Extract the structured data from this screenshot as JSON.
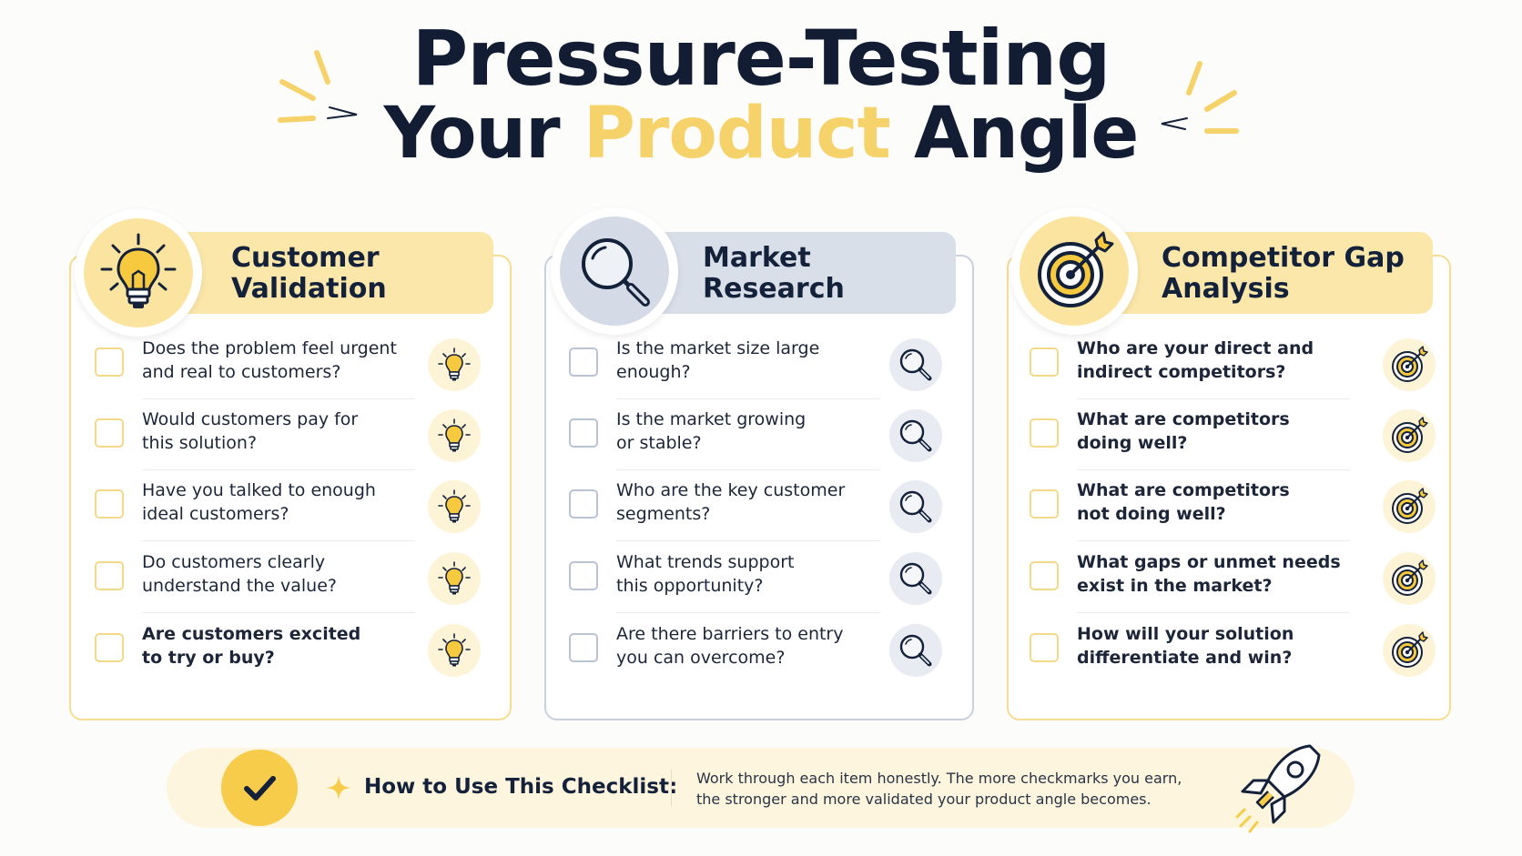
{
  "title": {
    "line1": "Pressure-Testing",
    "line2_pre": "Your ",
    "line2_accent": "Product",
    "line2_post": " Angle"
  },
  "colors": {
    "accent_yellow": "#f6d36a",
    "navy": "#121d34",
    "card_yellow": "#fbe7a9",
    "card_blue": "#d9dfe9"
  },
  "sections": [
    {
      "title_line1": "Customer",
      "title_line2": "Validation",
      "icon": "lightbulb-icon",
      "items": [
        {
          "text": "Does the problem feel urgent and real to customers?",
          "line1": "Does the problem feel urgent",
          "line2": "and real to customers?"
        },
        {
          "text": "Would customers pay for this solution?",
          "line1": "Would customers pay for",
          "line2": "this solution?"
        },
        {
          "text": "Have you talked to enough ideal customers?",
          "line1": "Have you talked to enough",
          "line2": "ideal customers?"
        },
        {
          "text": "Do customers clearly understand the value?",
          "line1": "Do customers clearly",
          "line2": "understand the value?"
        },
        {
          "text": "Are customers excited to try or buy?",
          "line1": "Are customers excited",
          "line2": "to try or buy?"
        }
      ]
    },
    {
      "title_line1": "Market",
      "title_line2": "Research",
      "icon": "magnifier-icon",
      "items": [
        {
          "text": "Is the market size large enough?",
          "line1": "Is the market size large",
          "line2": "enough?"
        },
        {
          "text": "Is the market growing or stable?",
          "line1": "Is the market growing",
          "line2": "or stable?"
        },
        {
          "text": "Who are the key customer segments?",
          "line1": "Who are the key customer",
          "line2": "segments?"
        },
        {
          "text": "What trends support this opportunity?",
          "line1": "What trends support",
          "line2": "this opportunity?"
        },
        {
          "text": "Are there barriers to entry you can overcome?",
          "line1": "Are there barriers to entry",
          "line2": "you can overcome?"
        }
      ]
    },
    {
      "title_line1": "Competitor Gap",
      "title_line2": "Analysis",
      "icon": "target-icon",
      "items": [
        {
          "text": "Who are your direct and indirect competitors?",
          "line1": "Who are your direct and",
          "line2": "indirect competitors?"
        },
        {
          "text": "What are competitors doing well?",
          "line1": "What are competitors",
          "line2": "doing well?"
        },
        {
          "text": "What are competitors not doing well?",
          "line1": "What are competitors",
          "line2": "not doing well?"
        },
        {
          "text": "What gaps or unmet needs exist in the market?",
          "line1": "What gaps or unmet needs",
          "line2": "exist in the market?"
        },
        {
          "text": "How will your solution differentiate and win?",
          "line1": "How will your solution",
          "line2": "differentiate and win?"
        }
      ]
    }
  ],
  "footer": {
    "title": "How to Use This Checklist:",
    "body_line1": "Work through each item honestly. The more checkmarks you earn,",
    "body_line2": "the stronger and more validated your product angle becomes.",
    "icon_left": "checkmark-icon",
    "icon_star": "sparkle-icon",
    "icon_right": "rocket-icon"
  }
}
